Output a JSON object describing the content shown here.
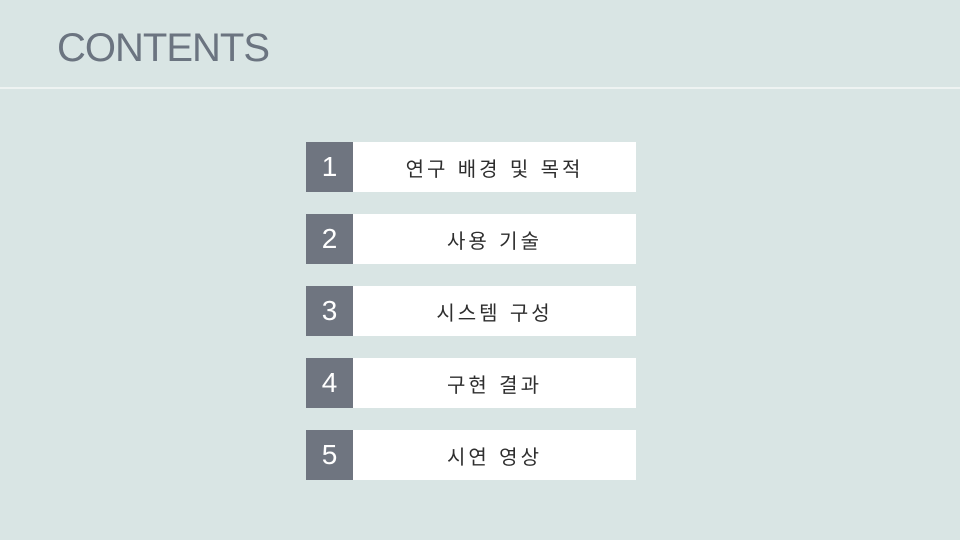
{
  "title": "CONTENTS",
  "items": [
    {
      "number": "1",
      "label": "연구 배경 및 목적"
    },
    {
      "number": "2",
      "label": "사용 기술"
    },
    {
      "number": "3",
      "label": "시스템 구성"
    },
    {
      "number": "4",
      "label": "구현 결과"
    },
    {
      "number": "5",
      "label": "시연 영상"
    }
  ],
  "colors": {
    "background": "#d9e5e4",
    "number_box": "#6f7580",
    "title_text": "#6b7480",
    "label_box": "#ffffff"
  }
}
